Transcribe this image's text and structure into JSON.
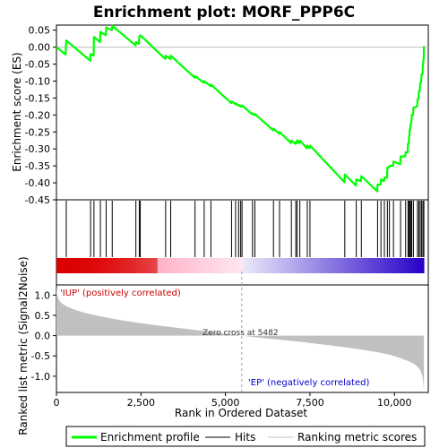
{
  "chart_data": {
    "type": "line",
    "title": "Enrichment plot: MORF_PPP6C",
    "xlabel": "Rank in Ordered Dataset",
    "es_ylabel": "Enrichment score (ES)",
    "metric_ylabel": "Ranked list metric (Signal2Noise)",
    "xlim": [
      0,
      11000
    ],
    "es_ylim": [
      -0.45,
      0.065
    ],
    "metric_ylim": [
      -1.4,
      1.25
    ],
    "x_ticks": [
      0,
      2500,
      5000,
      7500,
      10000
    ],
    "x_tick_labels": [
      "0",
      "2,500",
      "5,000",
      "7,500",
      "10,000"
    ],
    "es_ticks": [
      0.05,
      0.0,
      -0.05,
      -0.1,
      -0.15,
      -0.2,
      -0.25,
      -0.3,
      -0.35,
      -0.4,
      -0.45
    ],
    "es_tick_labels": [
      "0.05",
      "0.00",
      "-0.05",
      "-0.10",
      "-0.15",
      "-0.20",
      "-0.25",
      "-0.30",
      "-0.35",
      "-0.40",
      "-0.45"
    ],
    "metric_ticks": [
      1.0,
      0.5,
      0.0,
      -0.5,
      -1.0
    ],
    "metric_tick_labels": [
      "1.0",
      "0.5",
      "0.0",
      "-0.5",
      "-1.0"
    ],
    "n_genes": 10870,
    "zero_cross": 5482,
    "zero_cross_label": "Zero cross at 5482",
    "pos_label": "'IUP' (positively correlated)",
    "neg_label": "'EP' (negatively correlated)",
    "hits": [
      290,
      1010,
      1110,
      1300,
      1470,
      1650,
      2350,
      2450,
      2480,
      3230,
      3380,
      4100,
      4370,
      4570,
      5180,
      5300,
      5390,
      5450,
      5490,
      5800,
      5870,
      6420,
      6600,
      6950,
      7080,
      7120,
      7200,
      7420,
      7500,
      8530,
      8870,
      9020,
      9500,
      9600,
      9700,
      9790,
      9850,
      9970,
      10180,
      10330,
      10400,
      10430,
      10450,
      10480,
      10510,
      10560,
      10680,
      10720,
      10760,
      10800,
      10840,
      10870
    ],
    "es_curve": {
      "x": [
        0,
        270,
        290,
        1000,
        1010,
        1100,
        1110,
        1290,
        1300,
        1460,
        1470,
        1640,
        1650,
        2340,
        2350,
        2440,
        2450,
        2480,
        3220,
        3230,
        3370,
        3380,
        4090,
        4100,
        4360,
        4370,
        4560,
        4570,
        5170,
        5180,
        5290,
        5300,
        5380,
        5390,
        5440,
        5450,
        5480,
        5490,
        5790,
        5800,
        5860,
        5870,
        6410,
        6420,
        6590,
        6600,
        6940,
        6950,
        7070,
        7080,
        7110,
        7120,
        7190,
        7200,
        7410,
        7420,
        7490,
        7500,
        8520,
        8530,
        8860,
        8870,
        9010,
        9020,
        9490,
        9500,
        9590,
        9600,
        9690,
        9700,
        9780,
        9790,
        9840,
        9850,
        9960,
        9970,
        10170,
        10180,
        10320,
        10330,
        10390,
        10400,
        10420,
        10430,
        10440,
        10450,
        10470,
        10480,
        10500,
        10510,
        10550,
        10560,
        10670,
        10680,
        10710,
        10720,
        10750,
        10760,
        10790,
        10800,
        10830,
        10840,
        10865,
        10870
      ],
      "y": [
        0.0,
        -0.022,
        0.02,
        -0.04,
        -0.02,
        -0.025,
        0.03,
        0.015,
        0.045,
        0.035,
        0.058,
        0.05,
        0.063,
        0.005,
        0.015,
        0.01,
        0.03,
        0.035,
        -0.035,
        -0.025,
        -0.035,
        -0.025,
        -0.09,
        -0.085,
        -0.105,
        -0.1,
        -0.115,
        -0.11,
        -0.165,
        -0.16,
        -0.168,
        -0.165,
        -0.172,
        -0.17,
        -0.175,
        -0.172,
        -0.175,
        -0.172,
        -0.198,
        -0.195,
        -0.2,
        -0.197,
        -0.245,
        -0.24,
        -0.255,
        -0.25,
        -0.283,
        -0.275,
        -0.285,
        -0.28,
        -0.283,
        -0.275,
        -0.283,
        -0.275,
        -0.298,
        -0.29,
        -0.298,
        -0.29,
        -0.398,
        -0.375,
        -0.408,
        -0.39,
        -0.395,
        -0.38,
        -0.425,
        -0.405,
        -0.405,
        -0.39,
        -0.395,
        -0.385,
        -0.385,
        -0.355,
        -0.355,
        -0.35,
        -0.35,
        -0.337,
        -0.345,
        -0.322,
        -0.322,
        -0.31,
        -0.31,
        -0.285,
        -0.285,
        -0.265,
        -0.262,
        -0.245,
        -0.242,
        -0.225,
        -0.222,
        -0.2,
        -0.2,
        -0.178,
        -0.175,
        -0.155,
        -0.152,
        -0.13,
        -0.128,
        -0.105,
        -0.103,
        -0.08,
        -0.078,
        -0.055,
        -0.03,
        0.003
      ]
    },
    "metric_curve": {
      "x": [
        0,
        20,
        60,
        150,
        300,
        500,
        800,
        1200,
        1700,
        2300,
        3000,
        3800,
        4500,
        5000,
        5482,
        6000,
        6600,
        7200,
        7800,
        8400,
        9000,
        9500,
        9900,
        10200,
        10450,
        10600,
        10700,
        10760,
        10810,
        10840,
        10855,
        10870
      ],
      "y": [
        1.22,
        1.02,
        0.9,
        0.8,
        0.72,
        0.65,
        0.57,
        0.49,
        0.41,
        0.33,
        0.25,
        0.17,
        0.1,
        0.05,
        0.0,
        -0.05,
        -0.1,
        -0.15,
        -0.21,
        -0.27,
        -0.34,
        -0.41,
        -0.48,
        -0.56,
        -0.64,
        -0.71,
        -0.78,
        -0.85,
        -0.95,
        -1.07,
        -1.2,
        -1.35
      ]
    },
    "colors": {
      "es_line": "#00ff00",
      "hit": "#000000",
      "metric_fill": "#c0c0c0",
      "zero_line": "#a0a0a0",
      "pos_text": "#cc0000",
      "neg_text": "#0000cc"
    },
    "legend": {
      "position": "bottom",
      "items": [
        {
          "label": "Enrichment profile",
          "color": "#00ff00",
          "kind": "thick-line"
        },
        {
          "label": "Hits",
          "color": "#000000",
          "kind": "line"
        },
        {
          "label": "Ranking metric scores",
          "color": "#c0c0c0",
          "kind": "line"
        }
      ]
    }
  }
}
